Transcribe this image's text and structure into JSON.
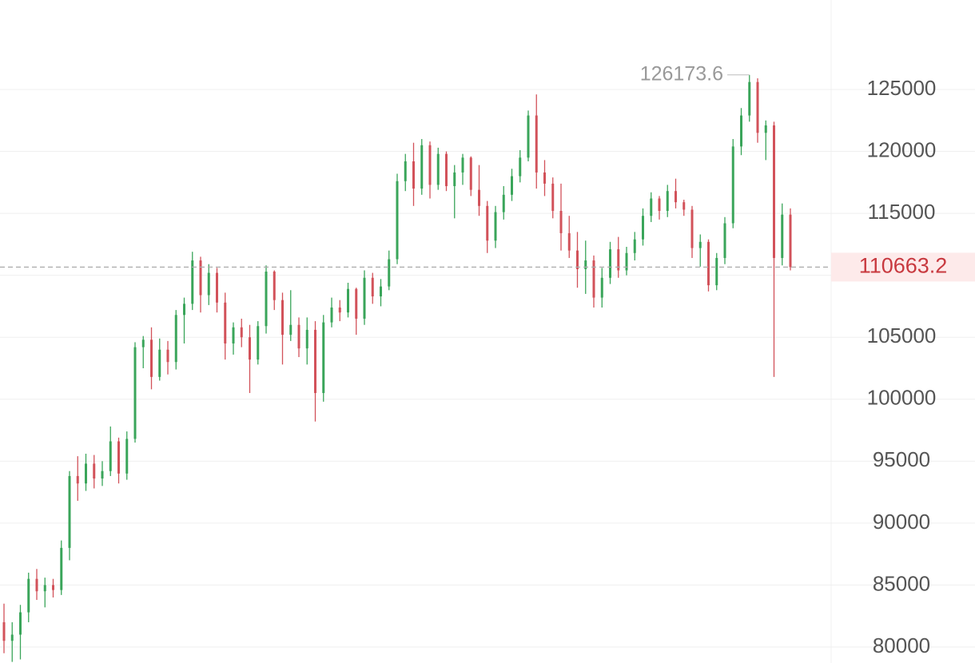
{
  "chart_data": {
    "type": "candlestick",
    "up_color": "#3aa55a",
    "down_color": "#d2525a",
    "ylim": [
      78710,
      132221
    ],
    "yticks": [
      80000,
      85000,
      90000,
      95000,
      100000,
      105000,
      110000,
      115000,
      120000,
      125000
    ],
    "grid": true,
    "last_price": 110663.2,
    "max_price": 126173.6,
    "open": [
      82000,
      80500,
      81000,
      82800,
      85500,
      84500,
      85000,
      84600,
      88000,
      93800,
      93200,
      94800,
      93600,
      94200,
      96600,
      94000,
      96800,
      104200,
      104800,
      101800,
      104000,
      103000,
      106800,
      107700,
      111200,
      108400,
      110200,
      107800,
      104500,
      105800,
      105000,
      103200,
      105900,
      110300,
      108000,
      105200,
      106000,
      104100,
      105600,
      100500,
      106200,
      107400,
      107000,
      108900,
      106500,
      109800,
      108300,
      109100,
      111300,
      117600,
      119200,
      117000,
      120500,
      117300,
      119800,
      117200,
      118300,
      119500,
      116900,
      115600,
      112800,
      115100,
      116500,
      118000,
      119500,
      122900,
      118300,
      117400,
      115200,
      113400,
      112000,
      110500,
      111200,
      108200,
      109800,
      112100,
      110400,
      111800,
      112900,
      114800,
      116200,
      115200,
      116800,
      115900,
      115300,
      112200,
      112700,
      109200,
      111400,
      114200,
      120400,
      122900,
      125600,
      121500,
      122100,
      111400,
      114900
    ],
    "high": [
      83500,
      82000,
      83400,
      86000,
      86300,
      85600,
      85500,
      88600,
      94200,
      95400,
      95600,
      95500,
      95000,
      97800,
      96900,
      97400,
      104600,
      105100,
      105800,
      104900,
      104700,
      107200,
      108200,
      111900,
      111500,
      110900,
      110600,
      108600,
      106200,
      106500,
      106000,
      106300,
      110800,
      110400,
      108600,
      108800,
      106600,
      106600,
      106300,
      106800,
      108200,
      108000,
      109400,
      109000,
      110400,
      110200,
      109700,
      112000,
      118200,
      119800,
      120700,
      121000,
      120800,
      120300,
      120000,
      118900,
      119800,
      119600,
      118900,
      116000,
      115600,
      117200,
      118600,
      120100,
      123300,
      124600,
      119300,
      117900,
      117400,
      114800,
      113500,
      112800,
      111600,
      110600,
      112700,
      113100,
      112300,
      113500,
      115400,
      116700,
      116400,
      117300,
      117800,
      116100,
      115600,
      113300,
      112900,
      111800,
      114700,
      121000,
      123500,
      126173.6,
      125900,
      122500,
      122400,
      115800,
      115400
    ],
    "low": [
      79500,
      78800,
      79000,
      82000,
      83800,
      83200,
      84000,
      84200,
      87000,
      91800,
      92600,
      92800,
      93000,
      93800,
      93200,
      93500,
      96500,
      102500,
      100800,
      101500,
      102000,
      102400,
      104500,
      107200,
      107000,
      107600,
      107000,
      103200,
      103600,
      104200,
      100500,
      102800,
      105300,
      107200,
      102800,
      104700,
      103400,
      102800,
      98200,
      99800,
      105800,
      106300,
      106600,
      105200,
      106000,
      107700,
      107500,
      108800,
      110900,
      116800,
      115600,
      116500,
      116200,
      116900,
      116800,
      114600,
      117300,
      116400,
      114800,
      111800,
      112200,
      114500,
      116000,
      117500,
      119200,
      117000,
      116400,
      114600,
      112000,
      111400,
      109000,
      108500,
      107400,
      107400,
      109300,
      109800,
      110000,
      111200,
      112400,
      114300,
      114500,
      114700,
      115400,
      114800,
      111400,
      110700,
      108700,
      108800,
      110900,
      113800,
      119700,
      122400,
      120700,
      119300,
      101800,
      110800,
      110400
    ],
    "close": [
      80500,
      81000,
      82800,
      85500,
      84500,
      85000,
      84600,
      88000,
      93800,
      93200,
      94800,
      93600,
      94200,
      96600,
      94000,
      96800,
      104200,
      104800,
      101800,
      104000,
      103000,
      106800,
      107700,
      111200,
      108400,
      110200,
      107800,
      104500,
      105800,
      105000,
      103200,
      105900,
      110300,
      108000,
      105200,
      106000,
      104100,
      105600,
      100500,
      106200,
      107400,
      107000,
      108900,
      106500,
      109800,
      108300,
      109100,
      111300,
      117600,
      119200,
      117000,
      120500,
      117300,
      119800,
      117200,
      118300,
      119500,
      116900,
      115600,
      112800,
      115100,
      116500,
      118000,
      119500,
      122900,
      118300,
      117400,
      115200,
      113400,
      112000,
      110500,
      111200,
      108200,
      109800,
      112100,
      110400,
      111800,
      112900,
      114800,
      116200,
      115200,
      116800,
      115900,
      115300,
      112200,
      112700,
      109200,
      111400,
      114200,
      120400,
      122900,
      125600,
      121500,
      122100,
      111400,
      114900,
      110663.2
    ]
  }
}
